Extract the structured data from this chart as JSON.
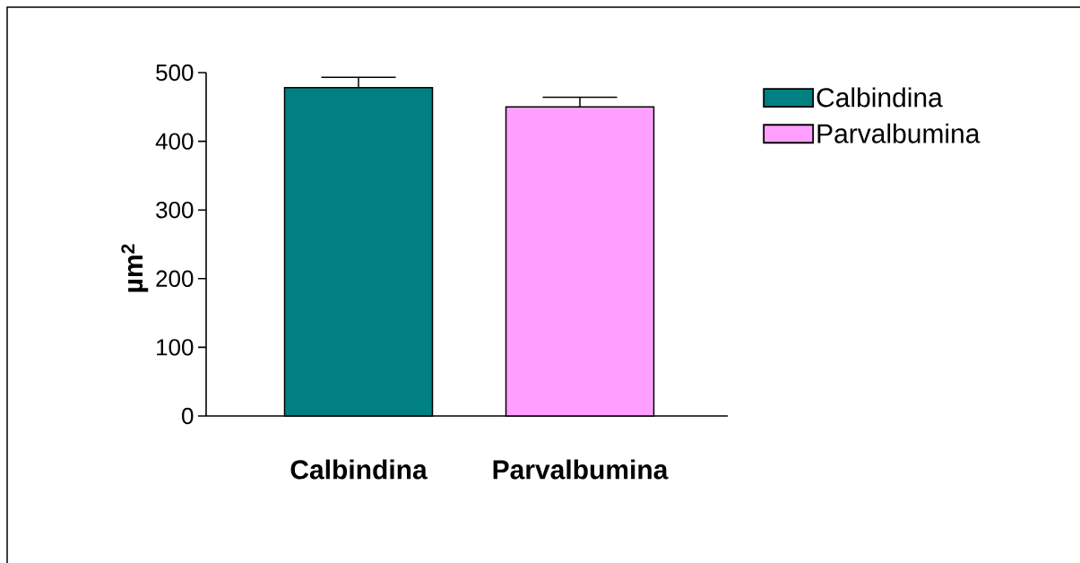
{
  "chart_data": {
    "type": "bar",
    "categories": [
      "Calbindina",
      "Parvalbumina"
    ],
    "ylabel": "µm$^{2}$",
    "ylim": [
      0,
      500
    ],
    "yticks": [
      0,
      100,
      200,
      300,
      400,
      500
    ],
    "legend": "top right",
    "series": [
      {
        "name": "Calbindina",
        "color": "#008080",
        "values": [
          478,
          null
        ],
        "errors": [
          15,
          null
        ]
      },
      {
        "name": "Parvalbumina",
        "color": "#ff9fff",
        "values": [
          null,
          450
        ],
        "errors": [
          null,
          14
        ]
      }
    ]
  }
}
